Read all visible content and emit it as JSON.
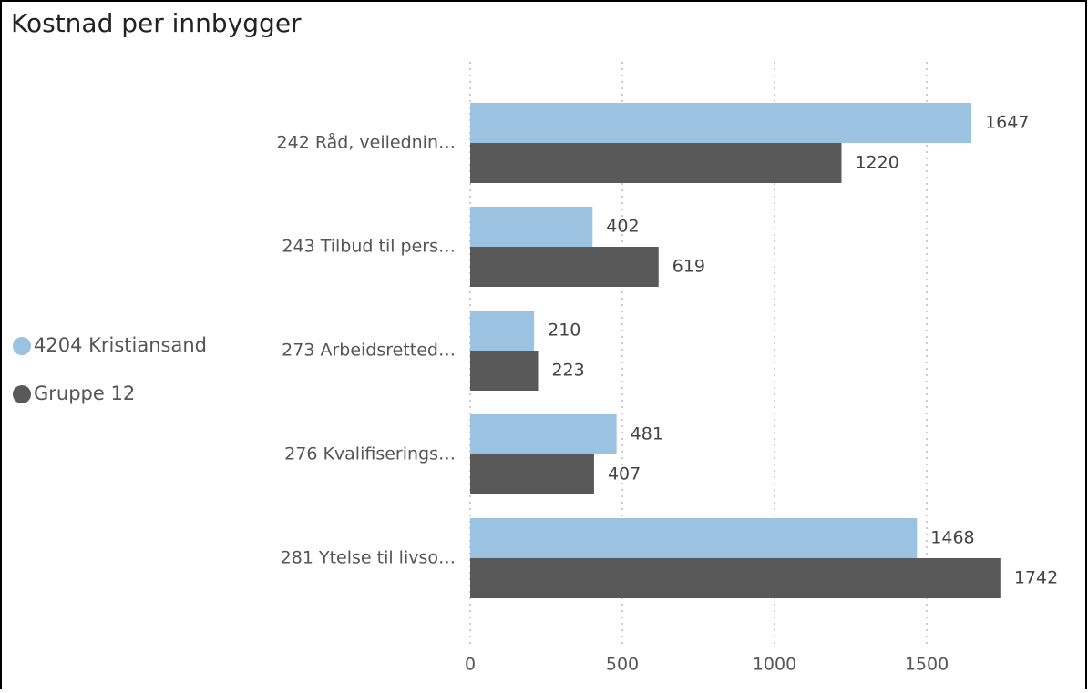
{
  "chart_data": {
    "type": "bar",
    "orientation": "horizontal",
    "title": "Kostnad per innbygger",
    "categories": [
      "242 Råd, veilednin…",
      "243 Tilbud til pers…",
      "273 Arbeidsretted…",
      "276 Kvalifiserings…",
      "281 Ytelse til livso…"
    ],
    "series": [
      {
        "name": "4204 Kristiansand",
        "color": "#9bc2e0",
        "values": [
          1647,
          402,
          210,
          481,
          1468
        ]
      },
      {
        "name": "Gruppe 12",
        "color": "#595959",
        "values": [
          1220,
          619,
          223,
          407,
          1742
        ]
      }
    ],
    "xlim": [
      0,
      2000
    ],
    "xticks": [
      0,
      500,
      1000,
      1500
    ],
    "grid": true,
    "legend": "left"
  }
}
